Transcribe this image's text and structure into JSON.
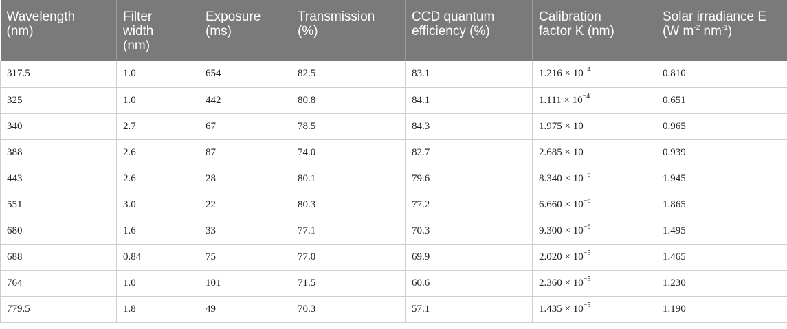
{
  "table": {
    "headers": [
      [
        "Wavelength",
        "(nm)"
      ],
      [
        "Filter",
        "width",
        "(nm)"
      ],
      [
        "Exposure",
        "(ms)"
      ],
      [
        "Transmission",
        "(%)"
      ],
      [
        "CCD quantum",
        "efficiency (%)"
      ],
      [
        "Calibration",
        "factor K (nm)"
      ],
      [
        "Solar irradiance E",
        "(W m",
        "-2",
        " nm",
        "-1",
        ")"
      ]
    ],
    "rows": [
      {
        "wavelength": "317.5",
        "filter": "1.0",
        "exposure": "654",
        "transmission": "82.5",
        "qe": "83.1",
        "k_mant": "1.216 × 10",
        "k_exp": "−4",
        "e": "0.810"
      },
      {
        "wavelength": "325",
        "filter": "1.0",
        "exposure": "442",
        "transmission": "80.8",
        "qe": "84.1",
        "k_mant": "1.111 × 10",
        "k_exp": "−4",
        "e": "0.651"
      },
      {
        "wavelength": "340",
        "filter": "2.7",
        "exposure": "67",
        "transmission": "78.5",
        "qe": "84.3",
        "k_mant": "1.975 × 10",
        "k_exp": "−5",
        "e": "0.965"
      },
      {
        "wavelength": "388",
        "filter": "2.6",
        "exposure": "87",
        "transmission": "74.0",
        "qe": "82.7",
        "k_mant": "2.685 × 10",
        "k_exp": "−5",
        "e": "0.939"
      },
      {
        "wavelength": "443",
        "filter": "2.6",
        "exposure": "28",
        "transmission": "80.1",
        "qe": "79.6",
        "k_mant": "8.340 × 10",
        "k_exp": "−6",
        "e": "1.945"
      },
      {
        "wavelength": "551",
        "filter": "3.0",
        "exposure": "22",
        "transmission": "80.3",
        "qe": "77.2",
        "k_mant": "6.660 × 10",
        "k_exp": "−6",
        "e": "1.865"
      },
      {
        "wavelength": "680",
        "filter": "1.6",
        "exposure": "33",
        "transmission": "77.1",
        "qe": "70.3",
        "k_mant": "9.300 × 10",
        "k_exp": "−6",
        "e": "1.495"
      },
      {
        "wavelength": "688",
        "filter": "0.84",
        "exposure": "75",
        "transmission": "77.0",
        "qe": "69.9",
        "k_mant": "2.020 × 10",
        "k_exp": "−5",
        "e": "1.465"
      },
      {
        "wavelength": "764",
        "filter": "1.0",
        "exposure": "101",
        "transmission": "71.5",
        "qe": "60.6",
        "k_mant": "2.360 × 10",
        "k_exp": "−5",
        "e": "1.230"
      },
      {
        "wavelength": "779.5",
        "filter": "1.8",
        "exposure": "49",
        "transmission": "70.3",
        "qe": "57.1",
        "k_mant": "1.435 × 10",
        "k_exp": "−5",
        "e": "1.190"
      }
    ]
  },
  "colors": {
    "header_bg": "#7a7a7a",
    "header_text": "#ffffff",
    "grid": "#cfcfcf"
  }
}
